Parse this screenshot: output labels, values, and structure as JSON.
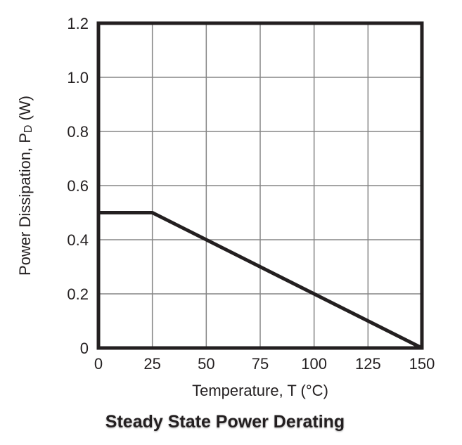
{
  "chart_data": {
    "type": "line",
    "title": "Steady State Power Derating",
    "xlabel": "Temperature, T (°C)",
    "ylabel": "Power Dissipation, PD (W)",
    "ylabel_parts": {
      "pre": "Power Dissipation, P",
      "sub": "D",
      "post": " (W)"
    },
    "xlim": [
      0,
      150
    ],
    "ylim": [
      0,
      1.2
    ],
    "grid": true,
    "legend": false,
    "x_ticks": [
      {
        "v": 0,
        "label": "0"
      },
      {
        "v": 25,
        "label": "25"
      },
      {
        "v": 50,
        "label": "50"
      },
      {
        "v": 75,
        "label": "75"
      },
      {
        "v": 100,
        "label": "100"
      },
      {
        "v": 125,
        "label": "125"
      },
      {
        "v": 150,
        "label": "150"
      }
    ],
    "y_ticks": [
      {
        "v": 0,
        "label": "0"
      },
      {
        "v": 0.2,
        "label": "0.2"
      },
      {
        "v": 0.4,
        "label": "0.4"
      },
      {
        "v": 0.6,
        "label": "0.6"
      },
      {
        "v": 0.8,
        "label": "0.8"
      },
      {
        "v": 1.0,
        "label": "1.0"
      },
      {
        "v": 1.2,
        "label": "1.2"
      }
    ],
    "series": [
      {
        "name": "power-derating-line",
        "points": [
          [
            0,
            0.5
          ],
          [
            25,
            0.5
          ],
          [
            150,
            0
          ]
        ]
      }
    ],
    "colors": {
      "axis": "#231f20",
      "grid": "#858585",
      "line": "#231f20",
      "text": "#231f20",
      "background": "#ffffff"
    }
  }
}
